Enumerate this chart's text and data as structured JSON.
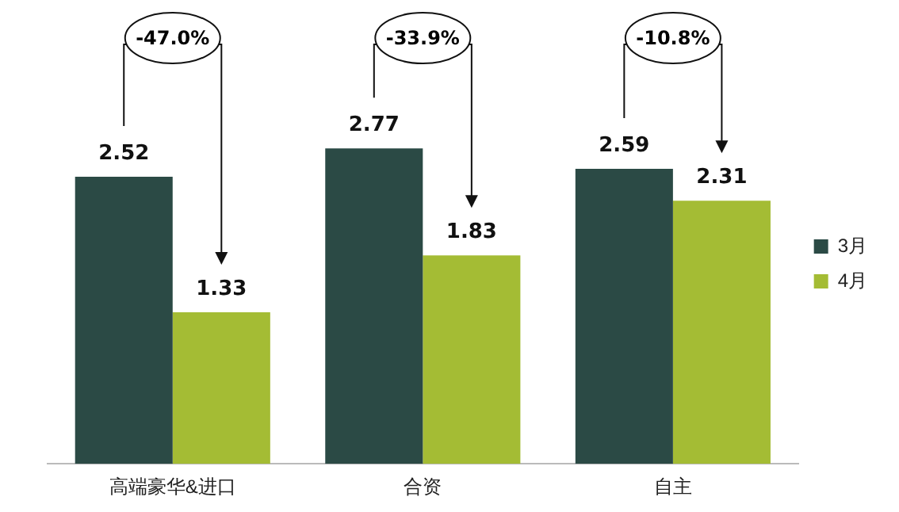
{
  "chart_data": {
    "type": "bar",
    "categories": [
      "高端豪华&进口",
      "合资",
      "自主"
    ],
    "series": [
      {
        "name": "3月",
        "color": "#2b4a45",
        "values": [
          2.52,
          2.77,
          2.59
        ]
      },
      {
        "name": "4月",
        "color": "#a4bc34",
        "values": [
          1.33,
          1.83,
          2.31
        ]
      }
    ],
    "data_labels": true,
    "legend": "right",
    "grid": false,
    "annotations": [
      "-47.0%",
      "-33.9%",
      "-10.8%"
    ]
  }
}
